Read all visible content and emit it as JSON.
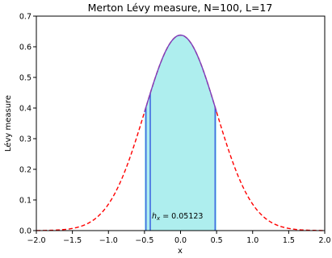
{
  "chart_data": {
    "type": "line",
    "title": "Merton Lévy measure, N=100, L=17",
    "xlabel": "x",
    "ylabel": "Lévy measure",
    "xlim": [
      -2.0,
      2.0
    ],
    "ylim": [
      0.0,
      0.7
    ],
    "xticks": [
      -2.0,
      -1.5,
      -1.0,
      -0.5,
      0.0,
      0.5,
      1.0,
      1.5,
      2.0
    ],
    "xtick_labels": [
      "−2.0",
      "−1.5",
      "−1.0",
      "−0.5",
      "0.0",
      "0.5",
      "1.0",
      "1.5",
      "2.0"
    ],
    "yticks": [
      0.0,
      0.1,
      0.2,
      0.3,
      0.4,
      0.5,
      0.6,
      0.7
    ],
    "ytick_labels": [
      "0.0",
      "0.1",
      "0.2",
      "0.3",
      "0.4",
      "0.5",
      "0.6",
      "0.7"
    ],
    "grid": false,
    "legend": "none",
    "series": [
      {
        "style": "dashed",
        "color": "#ff0000",
        "function": "normal-density",
        "peak": 0.638,
        "mean": 0.0,
        "sd": 0.5,
        "x_range": [
          -2.0,
          2.0
        ]
      },
      {
        "style": "solid",
        "color": "#7b3fbf",
        "function": "normal-density",
        "peak": 0.638,
        "mean": 0.0,
        "sd": 0.5,
        "x_range": [
          -0.5,
          0.5
        ]
      }
    ],
    "shaded_region": {
      "x_range": [
        -0.5,
        0.5
      ],
      "fill": "#aeeeee"
    },
    "vertical_lines": [
      {
        "x": -0.48,
        "color": "#4169e1"
      },
      {
        "x": -0.42,
        "color": "#4169e1"
      },
      {
        "x": 0.48,
        "color": "#4169e1"
      }
    ],
    "annotation": {
      "label_symbol": "h",
      "label_subscript": "x",
      "label_value": " = 0.05123",
      "x": -0.42,
      "y": 0.04
    }
  }
}
